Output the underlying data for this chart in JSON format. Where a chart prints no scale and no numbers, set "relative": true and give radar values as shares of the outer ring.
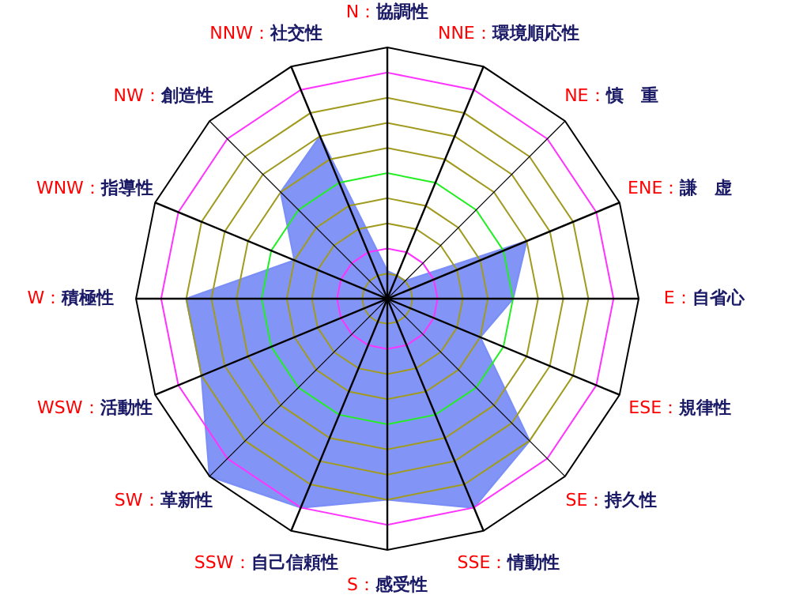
{
  "chart_data": {
    "type": "radar",
    "relative": true,
    "grid": true,
    "categories": [
      "N：協調性",
      "NNE：環境順応性",
      "NE：慎　重",
      "ENE：謙　虚",
      "E：自省心",
      "ESE：規律性",
      "SE：持久性",
      "SSE：情動性",
      "S：感受性",
      "SSW：自己信頼性",
      "SW：革新性",
      "WSW：活動性",
      "W：積極性",
      "WNW：指導性",
      "NW：創造性",
      "NNW：社交性"
    ],
    "series": [
      {
        "color": "#7b8ff6",
        "values": [
          0.11,
          0.1,
          0.1,
          0.6,
          0.5,
          0.4,
          0.8,
          0.9,
          0.8,
          0.9,
          1.0,
          0.8,
          0.8,
          0.4,
          0.6,
          0.7
        ]
      }
    ]
  }
}
